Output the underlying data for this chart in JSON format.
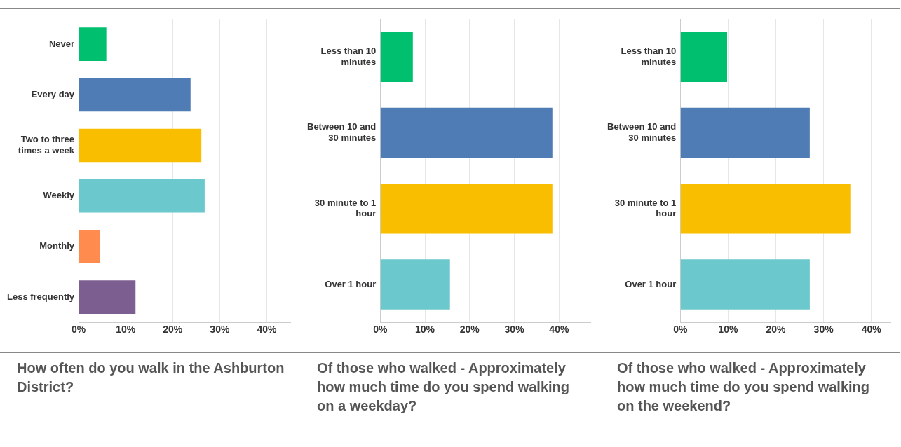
{
  "chart_data": [
    {
      "type": "bar",
      "orientation": "horizontal",
      "title": "How often do you walk in the Ashburton District?",
      "categories": [
        "Never",
        "Every day",
        "Two to three times a week",
        "Weekly",
        "Monthly",
        "Less frequently"
      ],
      "values": [
        5.9,
        23.8,
        26.1,
        26.8,
        4.6,
        12.1
      ],
      "colors": [
        "#00bf6f",
        "#507cb6",
        "#f9be00",
        "#6bc8cd",
        "#ff8b4f",
        "#7d5e90"
      ],
      "xlim": [
        0,
        45
      ],
      "xticks": [
        {
          "value": 0,
          "label": "0%"
        },
        {
          "value": 10,
          "label": "10%"
        },
        {
          "value": 20,
          "label": "20%"
        },
        {
          "value": 30,
          "label": "30%"
        },
        {
          "value": 40,
          "label": "40%"
        }
      ],
      "grid": "x"
    },
    {
      "type": "bar",
      "orientation": "horizontal",
      "title": "Of those who walked - Approximately how much time do you spend walking on a weekday?",
      "categories": [
        "Less than 10 minutes",
        "Between 10 and 30 minutes",
        "30 minute to 1 hour",
        "Over 1 hour"
      ],
      "values": [
        7.3,
        38.5,
        38.5,
        15.6
      ],
      "colors": [
        "#00bf6f",
        "#507cb6",
        "#f9be00",
        "#6bc8cd"
      ],
      "xlim": [
        0,
        47
      ],
      "xticks": [
        {
          "value": 0,
          "label": "0%"
        },
        {
          "value": 10,
          "label": "10%"
        },
        {
          "value": 20,
          "label": "20%"
        },
        {
          "value": 30,
          "label": "30%"
        },
        {
          "value": 40,
          "label": "40%"
        }
      ],
      "grid": "x"
    },
    {
      "type": "bar",
      "orientation": "horizontal",
      "title": "Of those who walked - Approximately how much time do you spend walking on the weekend?",
      "categories": [
        "Less than 10 minutes",
        "Between 10 and 30 minutes",
        "30 minute to 1 hour",
        "Over 1 hour"
      ],
      "values": [
        9.8,
        27.1,
        35.6,
        27.1
      ],
      "colors": [
        "#00bf6f",
        "#507cb6",
        "#f9be00",
        "#6bc8cd"
      ],
      "xlim": [
        0,
        44
      ],
      "xticks": [
        {
          "value": 0,
          "label": "0%"
        },
        {
          "value": 10,
          "label": "10%"
        },
        {
          "value": 20,
          "label": "20%"
        },
        {
          "value": 30,
          "label": "30%"
        },
        {
          "value": 40,
          "label": "40%"
        }
      ],
      "grid": "x"
    }
  ]
}
